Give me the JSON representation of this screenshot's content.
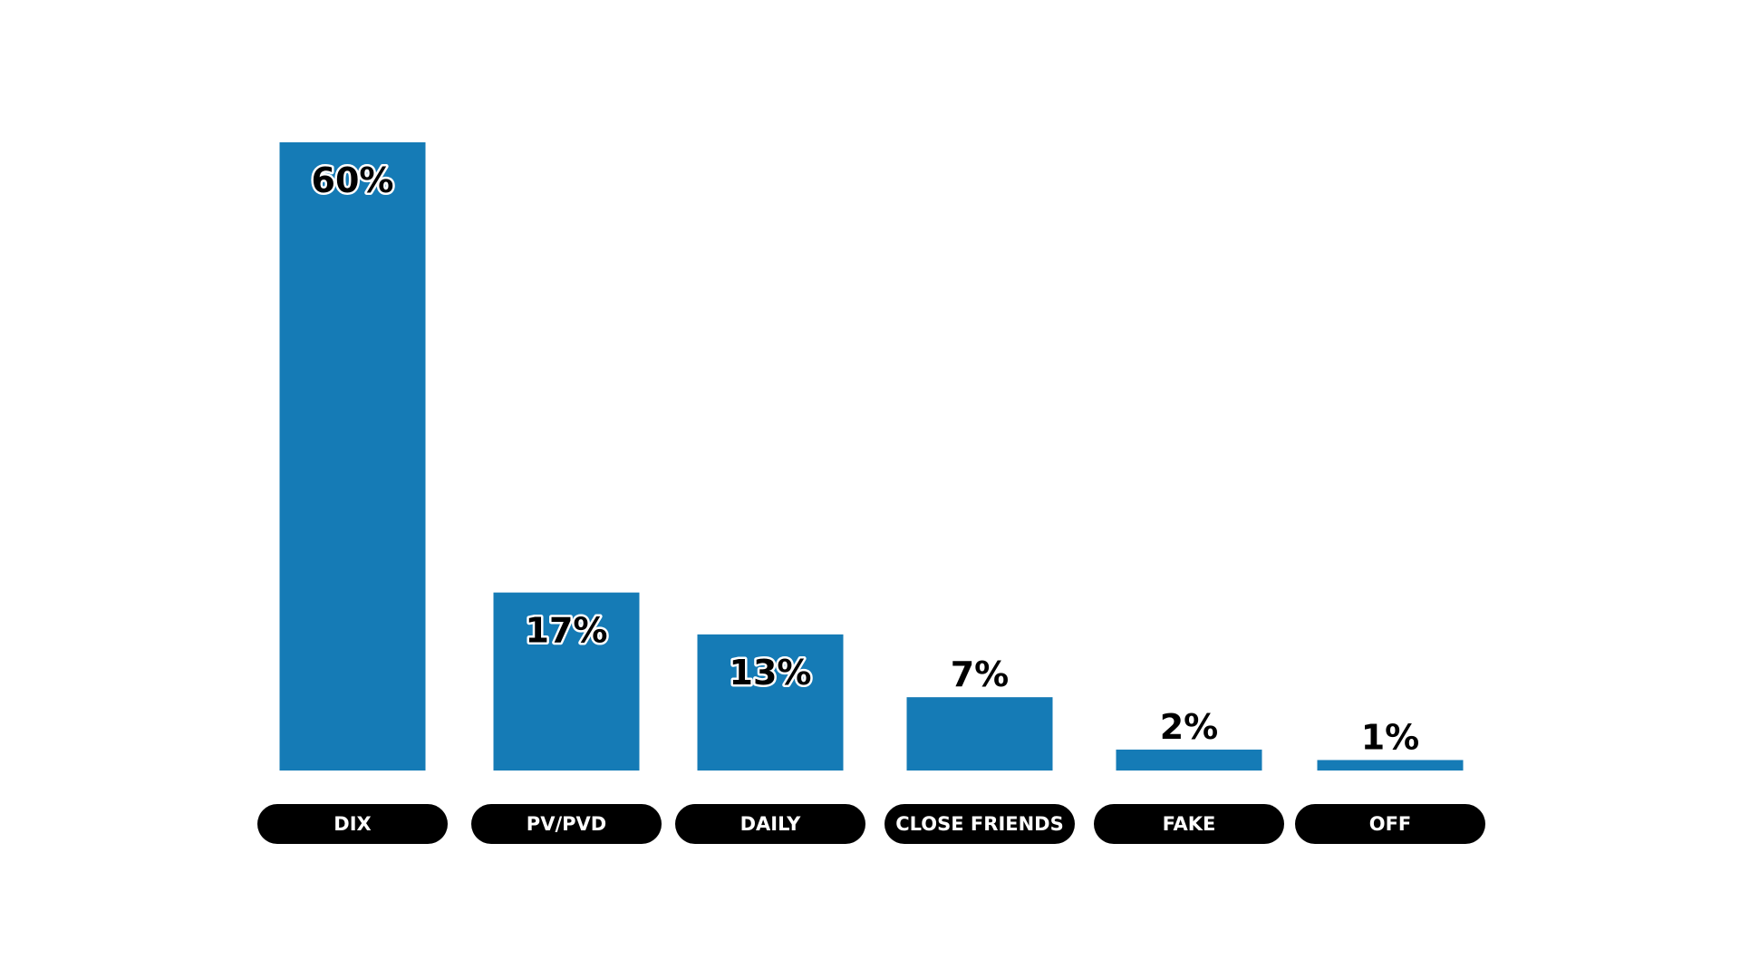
{
  "chart_data": {
    "type": "bar",
    "categories": [
      "DIX",
      "PV/PVD",
      "DAILY",
      "CLOSE FRIENDS",
      "FAKE",
      "OFF"
    ],
    "values": [
      60,
      17,
      13,
      7,
      2,
      1
    ],
    "value_labels": [
      "60%",
      "17%",
      "13%",
      "7%",
      "2%",
      "1%"
    ],
    "title": "",
    "xlabel": "",
    "ylabel": "",
    "ylim": [
      0,
      60
    ],
    "grid": false,
    "legend": "none",
    "colors": {
      "bar": "#157bb6",
      "category_pill": "#000000",
      "category_text": "#ffffff",
      "value_text": "#000000"
    }
  }
}
